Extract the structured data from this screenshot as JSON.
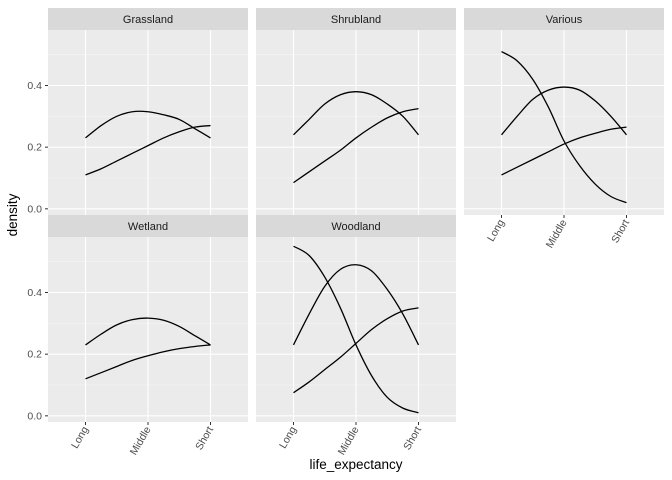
{
  "chart_data": {
    "type": "line",
    "title": "",
    "xlabel": "life_expectancy",
    "ylabel": "density",
    "x_categories": [
      "Long",
      "Middle",
      "Short"
    ],
    "yticks": [
      "0.0",
      "0.2",
      "0.4"
    ],
    "ylim": [
      -0.02,
      0.58
    ],
    "grid": true,
    "facets": [
      {
        "name": "Grassland",
        "curves": [
          [
            [
              1,
              0.23
            ],
            [
              1.25,
              0.27
            ],
            [
              1.5,
              0.3
            ],
            [
              1.75,
              0.315
            ],
            [
              2,
              0.315
            ],
            [
              2.25,
              0.305
            ],
            [
              2.5,
              0.29
            ],
            [
              2.75,
              0.26
            ],
            [
              3,
              0.23
            ]
          ],
          [
            [
              1,
              0.11
            ],
            [
              1.25,
              0.13
            ],
            [
              1.5,
              0.155
            ],
            [
              1.75,
              0.18
            ],
            [
              2,
              0.205
            ],
            [
              2.25,
              0.23
            ],
            [
              2.5,
              0.25
            ],
            [
              2.75,
              0.265
            ],
            [
              3,
              0.27
            ]
          ]
        ]
      },
      {
        "name": "Shrubland",
        "curves": [
          [
            [
              1,
              0.24
            ],
            [
              1.25,
              0.29
            ],
            [
              1.5,
              0.34
            ],
            [
              1.75,
              0.37
            ],
            [
              2,
              0.38
            ],
            [
              2.25,
              0.37
            ],
            [
              2.5,
              0.34
            ],
            [
              2.75,
              0.3
            ],
            [
              3,
              0.24
            ]
          ],
          [
            [
              1,
              0.085
            ],
            [
              1.25,
              0.12
            ],
            [
              1.5,
              0.155
            ],
            [
              1.75,
              0.19
            ],
            [
              2,
              0.23
            ],
            [
              2.25,
              0.265
            ],
            [
              2.5,
              0.295
            ],
            [
              2.75,
              0.315
            ],
            [
              3,
              0.325
            ]
          ]
        ]
      },
      {
        "name": "Various",
        "curves": [
          [
            [
              1,
              0.51
            ],
            [
              1.25,
              0.48
            ],
            [
              1.5,
              0.42
            ],
            [
              1.75,
              0.33
            ],
            [
              2,
              0.22
            ],
            [
              2.25,
              0.14
            ],
            [
              2.5,
              0.08
            ],
            [
              2.75,
              0.04
            ],
            [
              3,
              0.02
            ]
          ],
          [
            [
              1,
              0.24
            ],
            [
              1.25,
              0.3
            ],
            [
              1.5,
              0.355
            ],
            [
              1.75,
              0.385
            ],
            [
              2,
              0.395
            ],
            [
              2.25,
              0.385
            ],
            [
              2.5,
              0.35
            ],
            [
              2.75,
              0.3
            ],
            [
              3,
              0.24
            ]
          ],
          [
            [
              1,
              0.11
            ],
            [
              1.25,
              0.135
            ],
            [
              1.5,
              0.16
            ],
            [
              1.75,
              0.185
            ],
            [
              2,
              0.21
            ],
            [
              2.25,
              0.23
            ],
            [
              2.5,
              0.245
            ],
            [
              2.75,
              0.258
            ],
            [
              3,
              0.265
            ]
          ]
        ]
      },
      {
        "name": "Wetland",
        "curves": [
          [
            [
              1,
              0.23
            ],
            [
              1.25,
              0.265
            ],
            [
              1.5,
              0.295
            ],
            [
              1.75,
              0.312
            ],
            [
              2,
              0.317
            ],
            [
              2.25,
              0.31
            ],
            [
              2.5,
              0.29
            ],
            [
              2.75,
              0.26
            ],
            [
              3,
              0.23
            ]
          ],
          [
            [
              1,
              0.12
            ],
            [
              1.25,
              0.14
            ],
            [
              1.5,
              0.16
            ],
            [
              1.75,
              0.18
            ],
            [
              2,
              0.195
            ],
            [
              2.25,
              0.208
            ],
            [
              2.5,
              0.218
            ],
            [
              2.75,
              0.225
            ],
            [
              3,
              0.23
            ]
          ]
        ]
      },
      {
        "name": "Woodland",
        "curves": [
          [
            [
              1,
              0.55
            ],
            [
              1.25,
              0.52
            ],
            [
              1.5,
              0.45
            ],
            [
              1.75,
              0.35
            ],
            [
              2,
              0.23
            ],
            [
              2.25,
              0.13
            ],
            [
              2.5,
              0.06
            ],
            [
              2.75,
              0.025
            ],
            [
              3,
              0.01
            ]
          ],
          [
            [
              1,
              0.23
            ],
            [
              1.25,
              0.33
            ],
            [
              1.5,
              0.42
            ],
            [
              1.75,
              0.475
            ],
            [
              2,
              0.49
            ],
            [
              2.25,
              0.47
            ],
            [
              2.5,
              0.41
            ],
            [
              2.75,
              0.33
            ],
            [
              3,
              0.23
            ]
          ],
          [
            [
              1,
              0.075
            ],
            [
              1.25,
              0.11
            ],
            [
              1.5,
              0.15
            ],
            [
              1.75,
              0.19
            ],
            [
              2,
              0.235
            ],
            [
              2.25,
              0.28
            ],
            [
              2.5,
              0.315
            ],
            [
              2.75,
              0.34
            ],
            [
              3,
              0.35
            ]
          ]
        ]
      }
    ]
  }
}
